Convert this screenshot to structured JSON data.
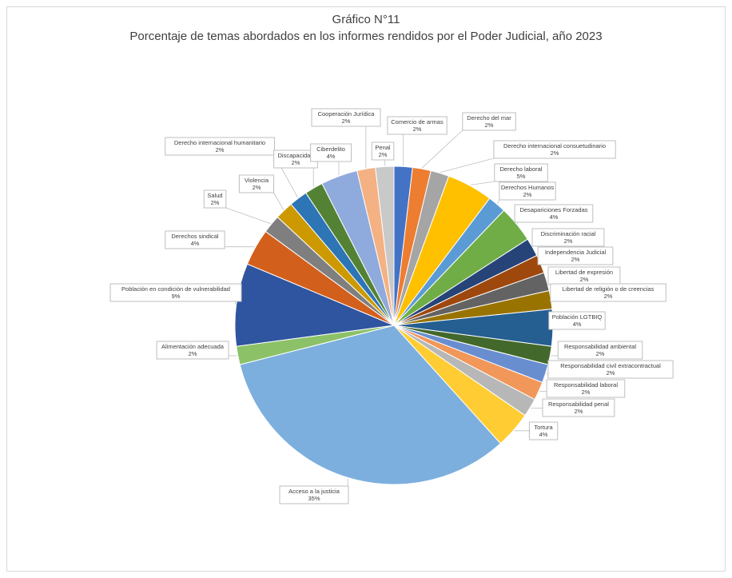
{
  "chart_data": {
    "type": "pie",
    "title": "Gráfico N°11",
    "subtitle": "Porcentaje de temas abordados en los informes rendidos por el Poder Judicial, año 2023",
    "slices": [
      {
        "label": "Comercio de armas",
        "value": 2,
        "pct_label": "2%",
        "color": "#4472C4"
      },
      {
        "label": "Derecho del mar",
        "value": 2,
        "pct_label": "2%",
        "color": "#ED7D31"
      },
      {
        "label": "Derecho internacional consuetudinario",
        "value": 2,
        "pct_label": "2%",
        "color": "#A5A5A5"
      },
      {
        "label": "Derecho laboral",
        "value": 5,
        "pct_label": "5%",
        "color": "#FFC000"
      },
      {
        "label": "Derechos Humanos",
        "value": 2,
        "pct_label": "2%",
        "color": "#5B9BD5"
      },
      {
        "label": "Desapariciones Forzadas",
        "value": 4,
        "pct_label": "4%",
        "color": "#70AD47"
      },
      {
        "label": "Discriminación racial",
        "value": 2,
        "pct_label": "2%",
        "color": "#264478"
      },
      {
        "label": "Independencia Judicial",
        "value": 2,
        "pct_label": "2%",
        "color": "#9E480E"
      },
      {
        "label": "Libertad de expresión",
        "value": 2,
        "pct_label": "2%",
        "color": "#636363"
      },
      {
        "label": "Libertad de religión o de creencias",
        "value": 2,
        "pct_label": "2%",
        "color": "#997300"
      },
      {
        "label": "Población LGTBIQ",
        "value": 4,
        "pct_label": "4%",
        "color": "#255E91"
      },
      {
        "label": "Responsabilidad ambiental",
        "value": 2,
        "pct_label": "2%",
        "color": "#43682B"
      },
      {
        "label": "Responsabilidad civil extracontractual",
        "value": 2,
        "pct_label": "2%",
        "color": "#698ED0"
      },
      {
        "label": "Responsabilidad laboral",
        "value": 2,
        "pct_label": "2%",
        "color": "#F1975A"
      },
      {
        "label": "Responsabilidad penal",
        "value": 2,
        "pct_label": "2%",
        "color": "#B7B7B7"
      },
      {
        "label": "Tortura",
        "value": 4,
        "pct_label": "4%",
        "color": "#FFCD33"
      },
      {
        "label": "Acceso a la justicia",
        "value": 35,
        "pct_label": "35%",
        "color": "#7CAFDD"
      },
      {
        "label": "Alimentación adecuada",
        "value": 2,
        "pct_label": "2%",
        "color": "#8CC168"
      },
      {
        "label": "Población en condición de vulnerabilidad",
        "value": 9,
        "pct_label": "9%",
        "color": "#2F55A0"
      },
      {
        "label": "Derechos sindical",
        "value": 4,
        "pct_label": "4%",
        "color": "#D35F1C"
      },
      {
        "label": "Salud",
        "value": 2,
        "pct_label": "2%",
        "color": "#7F7F7F"
      },
      {
        "label": "Violencia",
        "value": 2,
        "pct_label": "2%",
        "color": "#CC9A00"
      },
      {
        "label": "Derecho internacional humanitario",
        "value": 2,
        "pct_label": "2%",
        "color": "#2E75B6"
      },
      {
        "label": "Discapacidad",
        "value": 2,
        "pct_label": "2%",
        "color": "#548235"
      },
      {
        "label": "Ciberdelito",
        "value": 4,
        "pct_label": "4%",
        "color": "#8FAADC"
      },
      {
        "label": "Cooperación Jurídica",
        "value": 2,
        "pct_label": "2%",
        "color": "#F4B183"
      },
      {
        "label": "Penal",
        "value": 2,
        "pct_label": "2%",
        "color": "#C9C9C9"
      }
    ],
    "legend": "none",
    "data_labels": "callout"
  }
}
